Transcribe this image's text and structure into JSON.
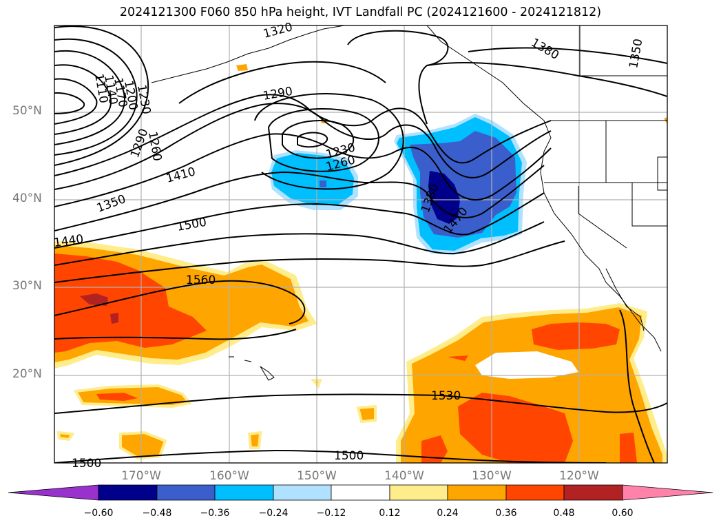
{
  "title": "2024121300 F060 850 hPa height, IVT Landfall PC (2024121600 - 2024121812)",
  "lat_labels": [
    "50°N",
    "40°N",
    "30°N",
    "20°N"
  ],
  "lon_labels": [
    "170°W",
    "160°W",
    "150°W",
    "140°W",
    "130°W",
    "120°W"
  ],
  "contour_labels": [
    "1320",
    "1380",
    "1350",
    "1290",
    "1230",
    "1260",
    "1410",
    "1350",
    "1500",
    "1440",
    "1560",
    "1380",
    "1470",
    "1530",
    "1500",
    "1500",
    "1290",
    "1260",
    "1230",
    "1200",
    "1170",
    "1140",
    "1110"
  ],
  "colorbar": {
    "ticks": [
      "−0.60",
      "−0.48",
      "−0.36",
      "−0.24",
      "−0.12",
      "0.12",
      "0.24",
      "0.36",
      "0.48",
      "0.60"
    ],
    "colors": [
      "#9932cc",
      "#00008b",
      "#3a5fcd",
      "#00bfff",
      "#b0e2ff",
      "#ffffff",
      "#ffec8b",
      "#ffa500",
      "#ff4500",
      "#b22222",
      "#ff82ab"
    ]
  },
  "colors": {
    "orange": "#ffa500",
    "light_yellow": "#ffec8b",
    "red_orange": "#ff4500",
    "dark_red": "#b22222",
    "light_blue": "#b0e2ff",
    "sky_blue": "#00bfff",
    "royal_blue": "#3a5fcd",
    "navy": "#00008b",
    "grid": "#b0b0b0",
    "axis_label": "#777777"
  }
}
